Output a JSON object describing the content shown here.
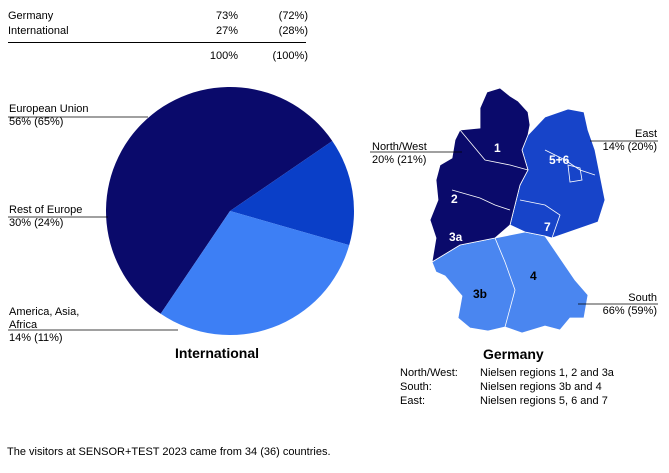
{
  "summary_table": {
    "rows": [
      {
        "label": "Germany",
        "value": "73%",
        "prev": "(72%)"
      },
      {
        "label": "International",
        "value": "27%",
        "prev": "(28%)"
      }
    ],
    "total": {
      "value": "100%",
      "prev": "(100%)"
    }
  },
  "international": {
    "title": "International",
    "labels": [
      {
        "line1": "European Union",
        "line2": "56% (65%)"
      },
      {
        "line1": "Rest of Europe",
        "line2": "30% (24%)"
      },
      {
        "line1": "America, Asia,",
        "line1b": "Africa",
        "line2": "14% (11%)"
      }
    ]
  },
  "germany": {
    "title": "Germany",
    "labels": {
      "northwest": {
        "line1": "North/West",
        "line2": "20% (21%)"
      },
      "east": {
        "line1": "East",
        "line2": "14% (20%)"
      },
      "south": {
        "line1": "South",
        "line2": "66% (59%)"
      }
    },
    "region_numbers": [
      "1",
      "2",
      "3a",
      "3b",
      "4",
      "5+6",
      "7"
    ],
    "legend": [
      {
        "key": "North/West:",
        "value": "Nielsen regions 1, 2 and 3a"
      },
      {
        "key": "South:",
        "value": "Nielsen regions 3b and 4"
      },
      {
        "key": "East:",
        "value": "Nielsen regions 5, 6 and 7"
      }
    ]
  },
  "footnote": "The visitors at SENSOR+TEST 2023 came from 34 (36) countries.",
  "colors": {
    "dark_navy": "#0a0a6b",
    "royal_blue": "#0a3fc8",
    "light_blue": "#3d7ff5",
    "map_east": "#1744c9",
    "map_south": "#4a86f0"
  },
  "chart_data": [
    {
      "type": "pie",
      "title": "International",
      "categories": [
        "European Union",
        "Rest of Europe",
        "America, Asia, Africa"
      ],
      "values": [
        56,
        30,
        14
      ],
      "previous_values": [
        65,
        24,
        11
      ],
      "colors": [
        "#0a0a6b",
        "#3d7ff5",
        "#0a3fc8"
      ]
    },
    {
      "type": "table",
      "title": "Germany",
      "categories": [
        "North/West",
        "East",
        "South"
      ],
      "values": [
        20,
        14,
        66
      ],
      "previous_values": [
        21,
        20,
        59
      ]
    }
  ]
}
